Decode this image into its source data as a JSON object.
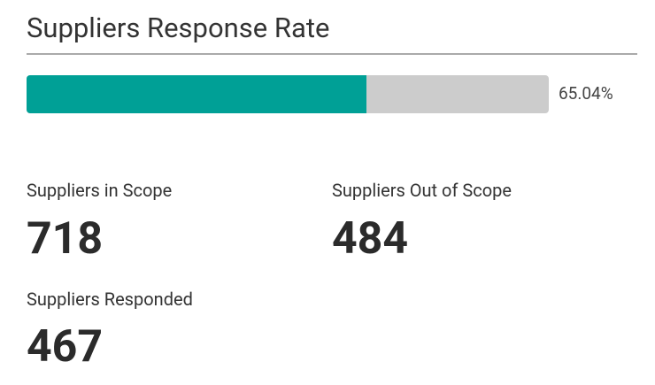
{
  "header": {
    "title": "Suppliers Response Rate"
  },
  "progress": {
    "value": 65.04,
    "value_label": "65.04%",
    "xlim": [
      0,
      100
    ]
  },
  "stats": [
    {
      "label": "Suppliers in Scope",
      "value": 718
    },
    {
      "label": "Suppliers Out of Scope",
      "value": 484
    },
    {
      "label": "Suppliers Responded",
      "value": 467
    }
  ]
}
